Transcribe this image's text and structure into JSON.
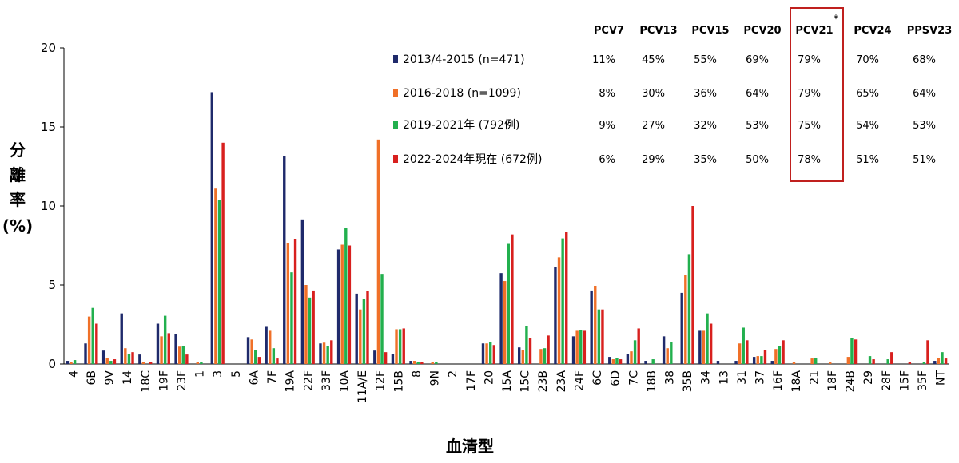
{
  "chart_data": {
    "type": "bar",
    "xlabel": "血清型",
    "ylabel_main": "分離率",
    "ylabel_unit": "(%)",
    "ylim": [
      0,
      20
    ],
    "yticks": [
      "0",
      "5",
      "10",
      "15",
      "20"
    ],
    "categories": [
      "4",
      "6B",
      "9V",
      "14",
      "18C",
      "19F",
      "23F",
      "1",
      "3",
      "5",
      "6A",
      "7F",
      "19A",
      "22F",
      "33F",
      "10A",
      "11A/E",
      "12F",
      "15B",
      "8",
      "9N",
      "2",
      "17F",
      "20",
      "15A",
      "15C",
      "23B",
      "23A",
      "24F",
      "6C",
      "6D",
      "7C",
      "18B",
      "38",
      "35B",
      "34",
      "13",
      "31",
      "37",
      "16F",
      "18A",
      "21",
      "18F",
      "24B",
      "29",
      "28F",
      "15F",
      "35F",
      "NT"
    ],
    "series": [
      {
        "name": "2013/4-2015 (n=471)",
        "color": "#1f2a6b",
        "values": [
          0.2,
          1.3,
          0.85,
          3.2,
          0.6,
          2.55,
          1.9,
          0,
          17.2,
          0,
          1.7,
          2.35,
          13.15,
          9.15,
          1.3,
          7.25,
          4.45,
          0.85,
          0.65,
          0.2,
          0,
          0,
          0,
          1.3,
          5.75,
          1.05,
          0,
          6.15,
          1.75,
          4.65,
          0.45,
          0.65,
          0.2,
          1.75,
          4.5,
          2.1,
          0.2,
          0.2,
          0.45,
          0.2,
          0,
          0,
          0,
          0,
          0,
          0,
          0,
          0,
          0.2
        ]
      },
      {
        "name": "2016-2018 (n=1099)",
        "color": "#f07028",
        "values": [
          0.15,
          3.0,
          0.4,
          1.0,
          0.15,
          1.75,
          1.1,
          0.15,
          11.1,
          0,
          1.55,
          2.1,
          7.65,
          5.0,
          1.35,
          7.55,
          3.45,
          14.2,
          2.2,
          0.2,
          0.1,
          0,
          0,
          1.3,
          5.25,
          0.9,
          0.95,
          6.75,
          2.1,
          4.95,
          0.3,
          0.8,
          0,
          1.0,
          5.65,
          2.1,
          0,
          1.3,
          0.5,
          0.95,
          0.1,
          0.35,
          0.1,
          0.45,
          0,
          0,
          0,
          0,
          0.4
        ]
      },
      {
        "name": "2019-2021年 (792例)",
        "color": "#22b04e",
        "values": [
          0.25,
          3.55,
          0.2,
          0.65,
          0,
          3.05,
          1.15,
          0.1,
          10.4,
          0,
          0.9,
          1.0,
          5.8,
          4.2,
          1.15,
          8.6,
          4.1,
          5.7,
          2.2,
          0.15,
          0.15,
          0,
          0,
          1.4,
          7.6,
          2.4,
          1.0,
          7.95,
          2.15,
          3.45,
          0.4,
          1.5,
          0.3,
          1.4,
          6.95,
          3.2,
          0,
          2.3,
          0.5,
          1.15,
          0,
          0.4,
          0,
          1.65,
          0.5,
          0.3,
          0,
          0.15,
          0.75
        ]
      },
      {
        "name": "2022-2024年現在 (672例)",
        "color": "#d8201e",
        "values": [
          0,
          2.55,
          0.3,
          0.75,
          0.15,
          1.95,
          0.6,
          0,
          14.0,
          0,
          0.45,
          0.35,
          7.9,
          4.65,
          1.5,
          7.5,
          4.6,
          0.75,
          2.25,
          0.15,
          0,
          0,
          0,
          1.2,
          8.2,
          1.65,
          1.8,
          8.35,
          2.1,
          3.45,
          0.3,
          2.25,
          0,
          0,
          10.0,
          2.55,
          0,
          1.5,
          0.9,
          1.5,
          0,
          0,
          0,
          1.55,
          0.3,
          0.75,
          0.1,
          1.5,
          0.35
        ]
      }
    ],
    "grid": false,
    "legend_position": "top-right"
  },
  "coverage_table": {
    "headers": [
      "PCV7",
      "PCV13",
      "PCV15",
      "PCV20",
      "PCV21",
      "PCV24",
      "PPSV23"
    ],
    "rows": [
      {
        "label": "2013/4-2015 (n=471)",
        "values": [
          "11%",
          "45%",
          "55%",
          "69%",
          "79%",
          "70%",
          "68%"
        ]
      },
      {
        "label": "2016-2018 (n=1099)",
        "values": [
          "8%",
          "30%",
          "36%",
          "64%",
          "79%",
          "65%",
          "64%"
        ]
      },
      {
        "label": "2019-2021年 (792例)",
        "values": [
          "9%",
          "27%",
          "32%",
          "53%",
          "75%",
          "54%",
          "53%"
        ]
      },
      {
        "label": "2022-2024年現在 (672例)",
        "values": [
          "6%",
          "29%",
          "35%",
          "50%",
          "78%",
          "51%",
          "51%"
        ]
      }
    ],
    "highlight_column": "PCV21",
    "highlight_mark": "*",
    "highlight_color": "#c0201e"
  }
}
